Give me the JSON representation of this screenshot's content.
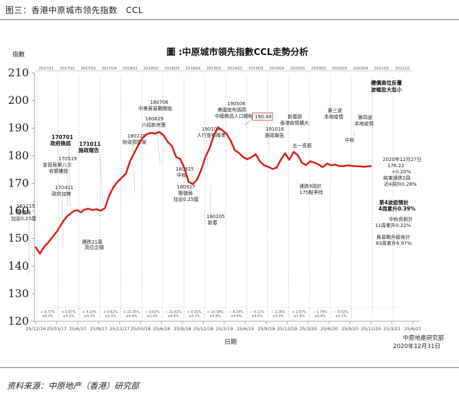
{
  "caption": "图三：香港中原城市领先指数　CCL",
  "source": "资料来源：中原地产（香港）研究部",
  "chart_data": {
    "type": "line",
    "title": "圖 :中原城市領先指數CCL走勢分析",
    "ylabel": "指數",
    "xlabel": "日期",
    "ylim": [
      120,
      210
    ],
    "yticks": [
      "210",
      "200",
      "190",
      "180",
      "170",
      "160",
      "150",
      "140",
      "130",
      "120"
    ],
    "quarter_labels": [
      "2017Q1",
      "2017Q2",
      "2017Q3",
      "2017Q4",
      "2018Q1",
      "2018Q2",
      "2018Q3",
      "2018Q4",
      "2019Q1",
      "2019Q2",
      "2019Q3",
      "2019Q4",
      "2020Q1",
      "2020Q2",
      "2020Q3",
      "2020Q4",
      "2021Q1",
      "2021Q2"
    ],
    "x_labels": [
      "25/12/16",
      "25/03/17",
      "25/6/17",
      "25/9/17",
      "25/12/17",
      "25/03/18",
      "25/6/18",
      "25/9/18",
      "25/12/18",
      "25/3/19",
      "25/6/19",
      "25/9/19",
      "25/12/19",
      "25/3/20",
      "25/6/20",
      "25/9/20",
      "25/12/20",
      "25/3/21",
      "25/6/21"
    ],
    "series": [
      {
        "color": "#d81e1e",
        "x": [
          0,
          0.1,
          0.2,
          0.3,
          0.45,
          0.6,
          0.75,
          0.9,
          1.0,
          1.15,
          1.3,
          1.5,
          1.7,
          1.85,
          2.0,
          2.15,
          2.3,
          2.5,
          2.7,
          2.9,
          3.1,
          3.3,
          3.5,
          3.7,
          3.9,
          4.1,
          4.3,
          4.5,
          4.7,
          4.9,
          5.1,
          5.3,
          5.5,
          5.7,
          5.9,
          6.1,
          6.3,
          6.5,
          6.7,
          6.9,
          7.1,
          7.3,
          7.5,
          7.7,
          7.9,
          8.1,
          8.3,
          8.5,
          8.7,
          8.9,
          9.1,
          9.3,
          9.5,
          9.7,
          9.9,
          10.1,
          10.3,
          10.5,
          10.7,
          10.9,
          11.1,
          11.3,
          11.5,
          11.7,
          11.9,
          12.1,
          12.3,
          12.5,
          12.7,
          12.9,
          13.1,
          13.3,
          13.5,
          13.7,
          13.9,
          14.1,
          14.3,
          14.5,
          14.7,
          14.9,
          15.1,
          15.3,
          15.5,
          15.7,
          15.9,
          16.0
        ],
        "y": [
          146.8,
          145.6,
          144.5,
          145.9,
          147.4,
          148.6,
          150.1,
          151.5,
          152.4,
          154.3,
          156.2,
          158.1,
          159.3,
          160.1,
          160.2,
          159.5,
          160.4,
          160.8,
          160.3,
          160.6,
          160.1,
          161.0,
          165.5,
          168.5,
          170.5,
          172.0,
          173.5,
          178.0,
          181.0,
          184.0,
          186.5,
          187.8,
          188.3,
          188.0,
          188.6,
          187.4,
          185.0,
          183.5,
          179.5,
          178.8,
          175.4,
          170.5,
          169.7,
          171.3,
          175.0,
          179.6,
          182.8,
          187.4,
          190.3,
          189.2,
          188.0,
          185.5,
          182.0,
          181.0,
          179.5,
          178.7,
          179.5,
          180.5,
          177.9,
          176.5,
          176.0,
          175.2,
          175.7,
          178.6,
          180.9,
          178.5,
          181.4,
          180.2,
          177.5,
          176.6,
          178.0,
          177.5,
          176.8,
          175.8,
          177.2,
          176.5,
          176.8,
          176.2,
          176.22,
          176.5,
          176.3,
          176.2,
          176.1,
          176.0,
          176.2,
          176.22
        ]
      }
    ],
    "annotations": [
      {
        "text": "161215"
      },
      {
        "text": "聯儲局"
      },
      {
        "text": "加息0.25厘"
      },
      {
        "text": "170411"
      },
      {
        "text": "政府加辣"
      },
      {
        "text": "170519"
      },
      {
        "text": "金管局第八次"
      },
      {
        "text": "收緊樓按"
      },
      {
        "text": "170701"
      },
      {
        "text": "政府換屆"
      },
      {
        "text": "171011"
      },
      {
        "text": "施政報告"
      },
      {
        "text": "連跌21周"
      },
      {
        "text": "高位企穩"
      },
      {
        "text": "180228"
      },
      {
        "text": "財政預算案"
      },
      {
        "text": "180629"
      },
      {
        "text": "六招新房策"
      },
      {
        "text": "180706"
      },
      {
        "text": "中美貿易戰開始"
      },
      {
        "text": "180925"
      },
      {
        "text": "中秋"
      },
      {
        "text": "180927"
      },
      {
        "text": "聯儲局"
      },
      {
        "text": "加息0.25厘"
      },
      {
        "text": "190104"
      },
      {
        "text": "人行宣布降準"
      },
      {
        "text": "190205"
      },
      {
        "text": "新春"
      },
      {
        "text": "190506"
      },
      {
        "text": "美國宣布調高"
      },
      {
        "text": "中國商品入口關稅"
      },
      {
        "text": "190.48"
      },
      {
        "text": "191016"
      },
      {
        "text": "施政報告"
      },
      {
        "text": "新春節"
      },
      {
        "text": "香港疫情擴大"
      },
      {
        "text": "五一長假"
      },
      {
        "text": "第三波"
      },
      {
        "text": "本地疫情"
      },
      {
        "text": "中秋"
      },
      {
        "text": "第四波"
      },
      {
        "text": "本地疫情"
      },
      {
        "text": "連跌9周於"
      },
      {
        "text": "175點爭持"
      },
      {
        "text": "樓價高位反覆"
      },
      {
        "text": "波幅忽大忽小"
      },
      {
        "text": "2020年12月27日"
      },
      {
        "text": "176.22"
      },
      {
        "text": "+0.20%"
      },
      {
        "text": "結束連跌2周"
      },
      {
        "text": "近4周升0.28%"
      },
      {
        "text": "第4波疫情計"
      },
      {
        "text": "4周累升0.39%"
      },
      {
        "text": "中秋長假計"
      },
      {
        "text": "11周累升0.22%"
      },
      {
        "text": "貿易戰升級後計"
      },
      {
        "text": "83周累升6.97%"
      }
    ],
    "changes": [
      "+ 9.77%",
      "+ 0.67%",
      "+ 4.10%",
      "+ 0.62%",
      "+ 11.30%",
      "− 0.62%",
      "− 11.42%",
      "+ 5.01%",
      "+ 10.38%",
      "− 8.24%",
      "− 4.11%",
      "− 2.26%",
      "+ 2.97%",
      "− 1.74%",
      "− 0.52%",
      "⊘8.2%",
      "⊘3.1%",
      "⊘3.3%",
      "⊘2.5%",
      "⊘4.9%",
      "⊘2.0%",
      "⊘4.6%",
      "⊘3.1%",
      "⊘3.8%",
      "⊘4.8%",
      "⊘4.5%",
      "⊘3.0%",
      "⊘1.9%",
      "⊘3.6%",
      "⊘2.1%"
    ],
    "footer_right": [
      "中原地產研究部",
      "2020年12月31日"
    ]
  }
}
